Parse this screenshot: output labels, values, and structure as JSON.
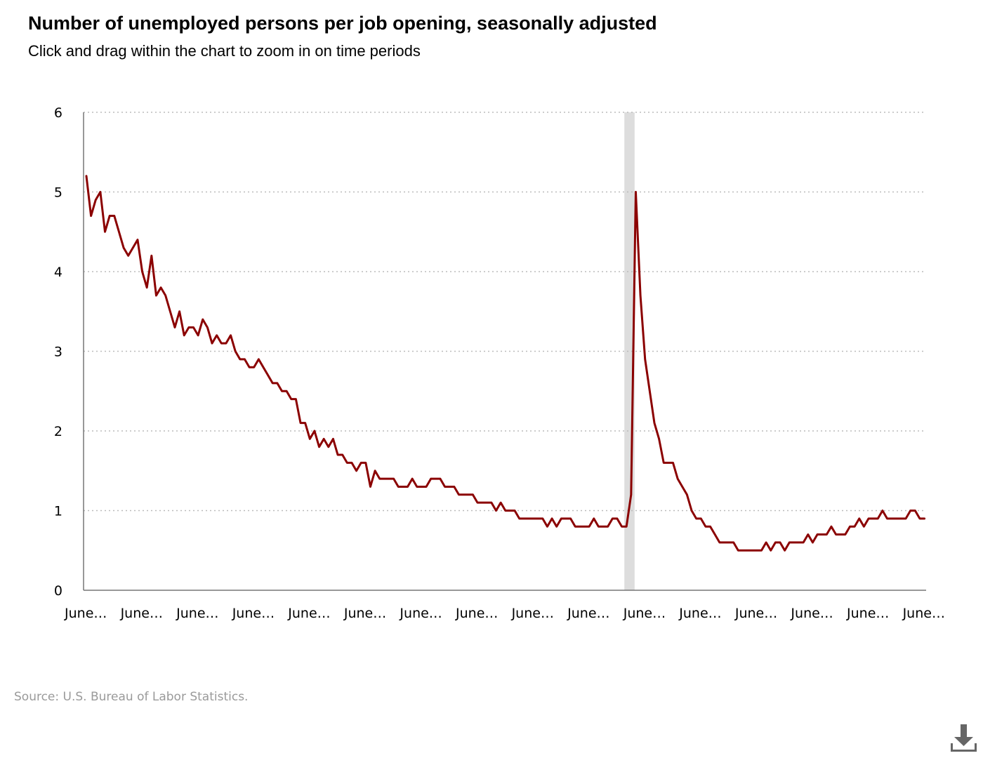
{
  "title": "Number of unemployed persons per job opening, seasonally adjusted",
  "subtitle": "Click and drag within the chart to zoom in on time periods",
  "source": "Source: U.S. Bureau of Labor Statistics.",
  "colors": {
    "line": "#8b0000",
    "recession_band": "#dddddd",
    "grid": "#bbbbbb",
    "axis": "#777777",
    "source_text": "#9a9a9a",
    "download_icon": "#666666"
  },
  "download_icon": "download-icon",
  "chart_data": {
    "type": "line",
    "title": "Number of unemployed persons per job opening, seasonally adjusted",
    "xlabel": "",
    "ylabel": "",
    "ylim": [
      0,
      6
    ],
    "yticks": [
      0,
      1,
      2,
      3,
      4,
      5,
      6
    ],
    "x_tick_labels": [
      "June…",
      "June…",
      "June…",
      "June…",
      "June…",
      "June…",
      "June…",
      "June…",
      "June…",
      "June…",
      "June…",
      "June…",
      "June…",
      "June…",
      "June…",
      "June…"
    ],
    "x_tick_period_index": [
      0,
      12,
      24,
      36,
      48,
      60,
      72,
      84,
      96,
      108,
      120,
      132,
      144,
      156,
      168,
      180
    ],
    "grid": true,
    "grid_style": "dotted horizontal",
    "legend": "none",
    "shaded_period_index": [
      116,
      117
    ],
    "series": [
      {
        "values": [
          5.2,
          4.7,
          4.9,
          5.0,
          4.5,
          4.7,
          4.7,
          4.5,
          4.3,
          4.2,
          4.3,
          4.4,
          4.0,
          3.8,
          4.2,
          3.7,
          3.8,
          3.7,
          3.5,
          3.3,
          3.5,
          3.2,
          3.3,
          3.3,
          3.2,
          3.4,
          3.3,
          3.1,
          3.2,
          3.1,
          3.1,
          3.2,
          3.0,
          2.9,
          2.9,
          2.8,
          2.8,
          2.9,
          2.8,
          2.7,
          2.6,
          2.6,
          2.5,
          2.5,
          2.4,
          2.4,
          2.1,
          2.1,
          1.9,
          2.0,
          1.8,
          1.9,
          1.8,
          1.9,
          1.7,
          1.7,
          1.6,
          1.6,
          1.5,
          1.6,
          1.6,
          1.3,
          1.5,
          1.4,
          1.4,
          1.4,
          1.4,
          1.3,
          1.3,
          1.3,
          1.4,
          1.3,
          1.3,
          1.3,
          1.4,
          1.4,
          1.4,
          1.3,
          1.3,
          1.3,
          1.2,
          1.2,
          1.2,
          1.2,
          1.1,
          1.1,
          1.1,
          1.1,
          1.0,
          1.1,
          1.0,
          1.0,
          1.0,
          0.9,
          0.9,
          0.9,
          0.9,
          0.9,
          0.9,
          0.8,
          0.9,
          0.8,
          0.9,
          0.9,
          0.9,
          0.8,
          0.8,
          0.8,
          0.8,
          0.9,
          0.8,
          0.8,
          0.8,
          0.9,
          0.9,
          0.8,
          0.8,
          1.2,
          5.0,
          3.7,
          2.9,
          2.5,
          2.1,
          1.9,
          1.6,
          1.6,
          1.6,
          1.4,
          1.3,
          1.2,
          1.0,
          0.9,
          0.9,
          0.8,
          0.8,
          0.7,
          0.6,
          0.6,
          0.6,
          0.6,
          0.5,
          0.5,
          0.5,
          0.5,
          0.5,
          0.5,
          0.6,
          0.5,
          0.6,
          0.6,
          0.5,
          0.6,
          0.6,
          0.6,
          0.6,
          0.7,
          0.6,
          0.7,
          0.7,
          0.7,
          0.8,
          0.7,
          0.7,
          0.7,
          0.8,
          0.8,
          0.9,
          0.8,
          0.9,
          0.9,
          0.9,
          1.0,
          0.9,
          0.9,
          0.9,
          0.9,
          0.9,
          1.0,
          1.0,
          0.9,
          0.9
        ]
      }
    ]
  }
}
